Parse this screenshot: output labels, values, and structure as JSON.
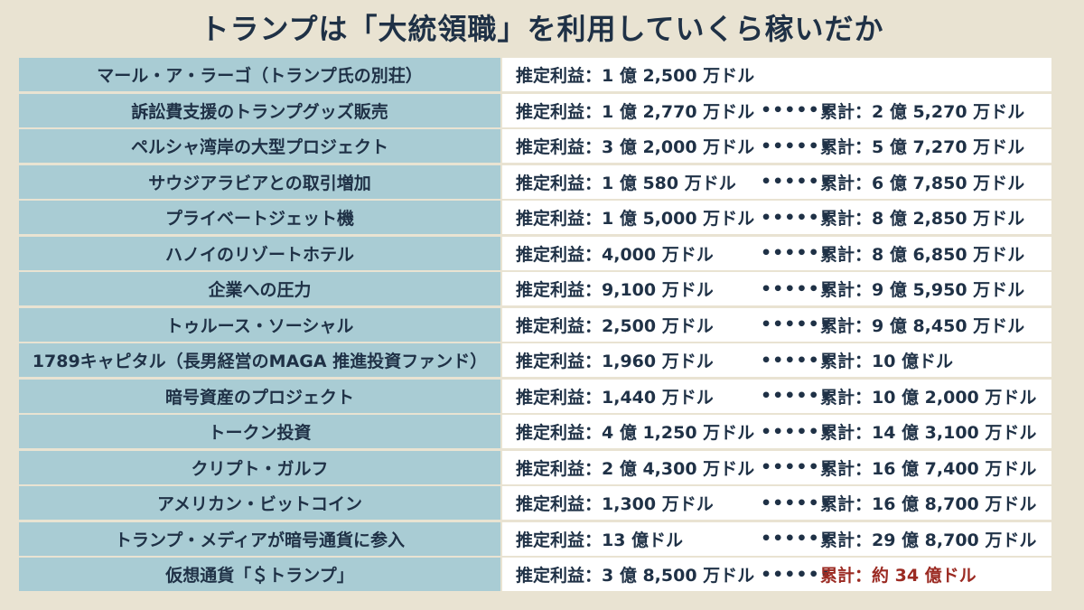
{
  "title": "トランプは「大統領職」を利用していくら稼いだか",
  "dots": "••••••",
  "rows": [
    {
      "item": "マール・ア・ラーゴ（トランプ氏の別荘）",
      "profit": "推定利益：1 億 2,500 万ドル",
      "total": ""
    },
    {
      "item": "訴訟費支援のトランプグッズ販売",
      "profit": "推定利益：1 億 2,770 万ドル",
      "total": "累計：2 億 5,270 万ドル"
    },
    {
      "item": "ペルシャ湾岸の大型プロジェクト",
      "profit": "推定利益：3 億 2,000 万ドル",
      "total": "累計：5 億 7,270 万ドル"
    },
    {
      "item": "サウジアラビアとの取引増加",
      "profit": "推定利益：1 億 580 万ドル",
      "total": "累計：6 億 7,850 万ドル"
    },
    {
      "item": "プライベートジェット機",
      "profit": "推定利益：1 億 5,000 万ドル",
      "total": "累計：8 億 2,850 万ドル"
    },
    {
      "item": "ハノイのリゾートホテル",
      "profit": "推定利益：4,000 万ドル",
      "total": "累計：8 億 6,850 万ドル"
    },
    {
      "item": "企業への圧力",
      "profit": "推定利益：9,100 万ドル",
      "total": "累計：9 億 5,950 万ドル"
    },
    {
      "item": "トゥルース・ソーシャル",
      "profit": "推定利益：2,500 万ドル",
      "total": "累計：9 億 8,450 万ドル"
    },
    {
      "item": "1789キャピタル（長男経営のMAGA 推進投資ファンド）",
      "profit": "推定利益：1,960 万ドル",
      "total": "累計：10 億ドル"
    },
    {
      "item": "暗号資産のプロジェクト",
      "profit": "推定利益：1,440 万ドル",
      "total": "累計：10 億 2,000 万ドル"
    },
    {
      "item": "トークン投資",
      "profit": "推定利益：4 億 1,250 万ドル",
      "total": "累計：14 億 3,100 万ドル"
    },
    {
      "item": "クリプト・ガルフ",
      "profit": "推定利益：2 億 4,300 万ドル",
      "total": "累計：16 億 7,400 万ドル"
    },
    {
      "item": "アメリカン・ビットコイン",
      "profit": "推定利益：1,300 万ドル",
      "total": "累計：16 億 8,700 万ドル"
    },
    {
      "item": "トランプ・メディアが暗号通貨に参入",
      "profit": "推定利益：13 億ドル",
      "total": "累計：29 億 8,700 万ドル"
    },
    {
      "item": "仮想通貨「＄トランプ」",
      "profit": "推定利益：3 億 8,500 万ドル",
      "total": "累計：約 34 億ドル"
    }
  ],
  "colors": {
    "background": "#e9e3d2",
    "label_cell": "#a9ccd4",
    "value_cell": "#ffffff",
    "text": "#1f3146",
    "final_total": "#9b2a22"
  }
}
